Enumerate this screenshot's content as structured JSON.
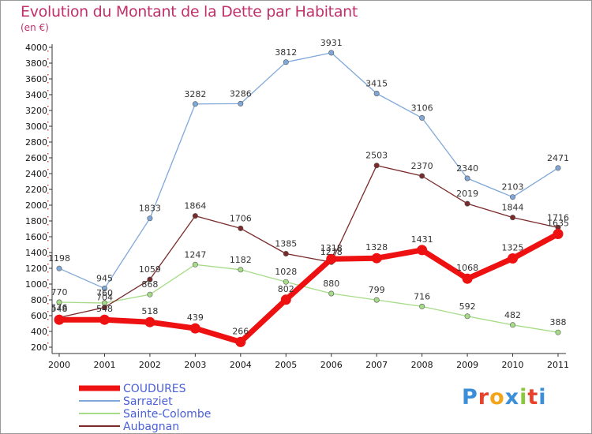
{
  "chart_data": {
    "type": "line",
    "title": "Evolution du Montant de la Dette par Habitant",
    "subtitle": "(en €)",
    "categories": [
      "2000",
      "2001",
      "2002",
      "2003",
      "2004",
      "2005",
      "2006",
      "2007",
      "2008",
      "2009",
      "2010",
      "2011"
    ],
    "ylim": [
      200,
      4000
    ],
    "yticks": [
      200,
      400,
      600,
      800,
      1000,
      1200,
      1400,
      1600,
      1800,
      2000,
      2200,
      2400,
      2600,
      2800,
      3000,
      3200,
      3400,
      3600,
      3800,
      4000
    ],
    "grid": false,
    "legend_position": "bottom-left",
    "series": [
      {
        "name": "COUDURES",
        "color": "#ee1111",
        "values": [
          548,
          548,
          518,
          439,
          266,
          802,
          1318,
          1328,
          1431,
          1068,
          1325,
          1635
        ]
      },
      {
        "name": "Sarraziet",
        "color": "#7fa8d8",
        "values": [
          1198,
          945,
          1833,
          3282,
          3286,
          3812,
          3931,
          3415,
          3106,
          2340,
          2103,
          2471
        ]
      },
      {
        "name": "Sainte-Colombe",
        "color": "#a6dc88",
        "values": [
          770,
          760,
          868,
          1247,
          1182,
          1028,
          880,
          799,
          716,
          592,
          482,
          388
        ]
      },
      {
        "name": "Aubagnan",
        "color": "#7a2a2a",
        "values": [
          576,
          704,
          1059,
          1864,
          1706,
          1385,
          1278,
          2503,
          2370,
          2019,
          1844,
          1716
        ]
      }
    ]
  },
  "logo": {
    "text": "Proxiti",
    "letters": [
      "P",
      "r",
      "o",
      "x",
      "i",
      "t",
      "i"
    ],
    "colors": [
      "#3a8fd8",
      "#e8412c",
      "#f2a51a",
      "#3a8fd8",
      "#8cc63e",
      "#e8412c",
      "#3a8fd8"
    ]
  }
}
